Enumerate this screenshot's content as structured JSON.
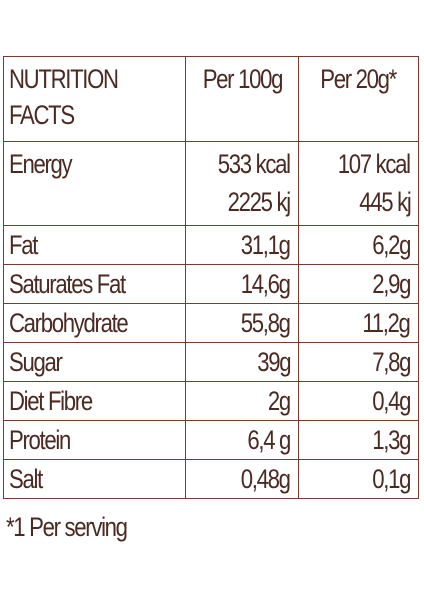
{
  "header": {
    "col1_line1": "NUTRITION",
    "col1_line2": "FACTS",
    "col2": "Per 100g",
    "col3": "Per 20g*"
  },
  "rows": [
    {
      "label": "Energy",
      "per100": [
        "533 kcal",
        "2225 kj"
      ],
      "perserving": [
        "107 kcal",
        "445 kj"
      ]
    },
    {
      "label": "Fat",
      "per100": "31,1g",
      "perserving": "6,2g"
    },
    {
      "label": "Saturates Fat",
      "per100": "14,6g",
      "perserving": "2,9g"
    },
    {
      "label": "Carbohydrate",
      "per100": "55,8g",
      "perserving": "11,2g"
    },
    {
      "label": "Sugar",
      "per100": "39g",
      "perserving": "7,8g"
    },
    {
      "label": "Diet Fibre",
      "per100": "2g",
      "perserving": "0,4g"
    },
    {
      "label": "Protein",
      "per100": "6,4 g",
      "perserving": "1,3g"
    },
    {
      "label": "Salt",
      "per100": "0,48g",
      "perserving": "0,1g"
    }
  ],
  "footnote": "*1 Per serving",
  "colors": {
    "text": "#4a2a22",
    "border": "#7a3a2e"
  }
}
